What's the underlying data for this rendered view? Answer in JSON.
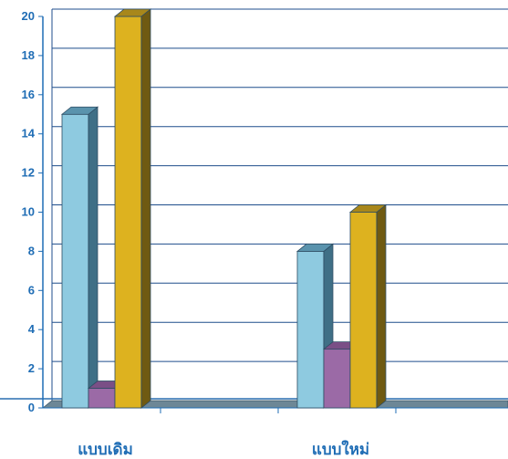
{
  "chart_data": {
    "type": "bar",
    "style": "3d-clustered",
    "categories": [
      "แบบเดิม",
      "แบบใหม่"
    ],
    "series": [
      {
        "values": [
          15,
          8
        ],
        "color": "#8ecae0",
        "side_color": "#3f6f86",
        "top_color": "#5a93ad"
      },
      {
        "values": [
          1,
          3
        ],
        "color": "#9b6aa6",
        "side_color": "#5c3a66",
        "top_color": "#7a4f86"
      },
      {
        "values": [
          20,
          10
        ],
        "color": "#ddb21f",
        "side_color": "#6f5a12",
        "top_color": "#a8871b"
      }
    ],
    "yticks": [
      0,
      2,
      4,
      6,
      8,
      10,
      12,
      14,
      16,
      18,
      20
    ],
    "ylim": [
      0,
      20
    ],
    "grid": true,
    "colors": {
      "axis": "#1f6db5",
      "grid": "#1f4e8c",
      "floor": "#6d8796",
      "floor_line": "#2a6fb0"
    }
  }
}
